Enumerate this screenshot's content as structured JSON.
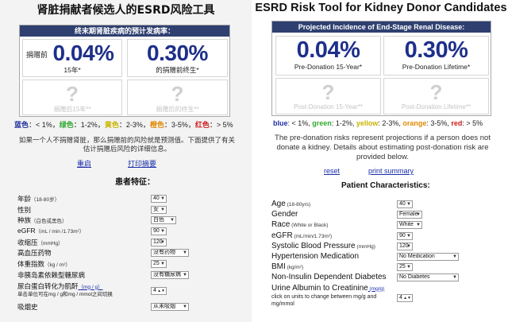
{
  "left": {
    "title": "肾脏捐献者候选人的ESRD风险工具",
    "results_header": "终末期肾脏疾病的预计发病率：",
    "pre15_prefix": "捐赠前",
    "pre15_value": "0.04%",
    "pre15_label": "15年*",
    "lifetime_value": "0.30%",
    "lifetime_label": "的捐赠前终生*",
    "post_q": "?",
    "post15_label": "捐赠后15年**",
    "postlife_label": "捐赠后的终生**",
    "legend": {
      "blue": "蓝色",
      "blue_range": "：< 1%，",
      "green": "绿色",
      "green_range": "：1-2%，",
      "yellow": "黄色",
      "yellow_range": "：2-3%，",
      "orange": "橙色",
      "orange_range": "：3-5%，",
      "red": "红色",
      "red_range": "：> 5%"
    },
    "note": "如果一个人不捐赠肾脏，那么捐赠前的风险就是预测值。下面提供了有关估计捐赠后风险的详细信息。",
    "reset_link": "重启",
    "print_link": "打印摘要",
    "section_title": "患者特征：",
    "rows": [
      {
        "label": "年龄",
        "sub": "（18-80岁）",
        "value": "40"
      },
      {
        "label": "性别",
        "sub": "",
        "value": "女"
      },
      {
        "label": "种族",
        "sub": "（白色或黑色）",
        "value": "白色"
      },
      {
        "label": "eGFR",
        "sub": "（mL / min /1.73m²）",
        "value": "90"
      },
      {
        "label": "收缩压",
        "sub": "（mmHg）",
        "value": "120"
      },
      {
        "label": "高血压药物",
        "sub": "",
        "value": "没有药物"
      },
      {
        "label": "体重指数",
        "sub": "（kg / m²）",
        "value": "25"
      },
      {
        "label": "非胰岛素依赖型糖尿病",
        "sub": "",
        "value": "没有糖尿病"
      },
      {
        "label": "尿白蛋白转化为肌酐",
        "sub": "（mg / g）",
        "value": "4",
        "hint": "单击单位可在mg / g和mg / mmol之间切换"
      },
      {
        "label": "吸烟史",
        "sub": "",
        "value": "从未吸烟"
      }
    ]
  },
  "right": {
    "title": "ESRD Risk Tool for Kidney Donor Candidates",
    "results_header": "Projected Incidence of End-Stage Renal Disease:",
    "pre15_value": "0.04%",
    "pre15_label": "Pre-Donation 15-Year*",
    "lifetime_value": "0.30%",
    "lifetime_label": "Pre-Donation Lifetime*",
    "post_q": "?",
    "post15_label": "Post-Donation 15-Year**",
    "postlife_label": "Post-Donation Lifetime**",
    "legend": {
      "blue": "blue",
      "blue_range": ": < 1%, ",
      "green": "green",
      "green_range": ": 1-2%, ",
      "yellow": "yellow",
      "yellow_range": ": 2-3%, ",
      "orange": "orange",
      "orange_range": ": 3-5%, ",
      "red": "red",
      "red_range": ": > 5%"
    },
    "note": "The pre-donation risks represent projections if a person does not donate a kidney. Details about estimating post-donation risk are provided below.",
    "reset_link": "reset",
    "print_link": "print summary",
    "section_title": "Patient Characteristics:",
    "rows": [
      {
        "label": "Age",
        "sub": " (18-80yrs)",
        "value": "40"
      },
      {
        "label": "Gender",
        "sub": "",
        "value": "Female"
      },
      {
        "label": "Race",
        "sub": " (White or Black)",
        "value": "White"
      },
      {
        "label": "eGFR",
        "sub": " (mL/min/1.73m²)",
        "value": "90"
      },
      {
        "label": "Systolic Blood Pressure",
        "sub": " (mmHg)",
        "value": "120"
      },
      {
        "label": "Hypertension Medication",
        "sub": "",
        "value": "No Medication"
      },
      {
        "label": "BMI",
        "sub": " (kg/m²)",
        "value": "25"
      },
      {
        "label": "Non-Insulin Dependent Diabetes",
        "sub": "",
        "value": "No Diabetes"
      },
      {
        "label": "Urine Albumin to Creatinine",
        "sub": " (mg/g)",
        "value": "4",
        "hint": "click on units to change between mg/g and mg/mmol"
      }
    ]
  },
  "colors": {
    "header_bg": "#2f4070",
    "value_blue": "#1e2f8a",
    "link": "#1a2ea8"
  }
}
